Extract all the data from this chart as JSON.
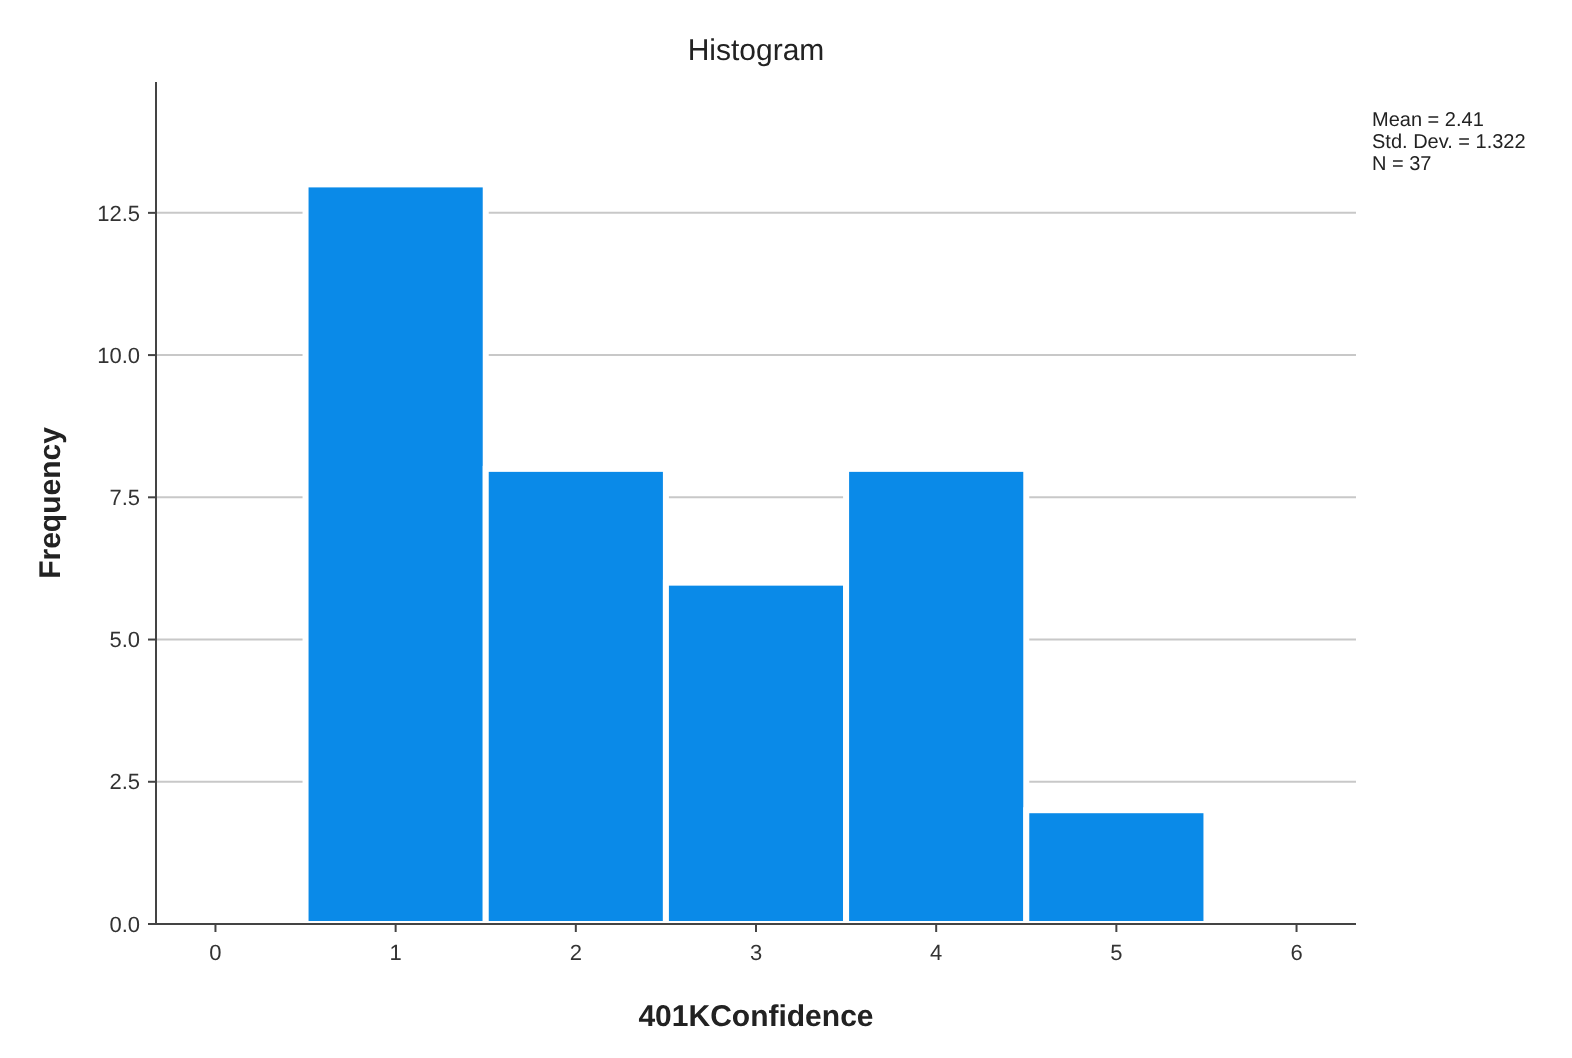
{
  "chart_data": {
    "type": "histogram",
    "title": "Histogram",
    "xlabel": "401KConfidence",
    "ylabel": "Frequency",
    "bins": [
      0.5,
      1.5,
      2.5,
      3.5,
      4.5,
      5.5
    ],
    "values": [
      13,
      8,
      6,
      8,
      2
    ],
    "color": "#0a8ae8",
    "xlim": [
      -0.33,
      6.33
    ],
    "xticks": [
      0,
      1,
      2,
      3,
      4,
      5,
      6
    ],
    "ylim": [
      0,
      14.8
    ],
    "yticks": [
      {
        "value": 0,
        "label": "0.0"
      },
      {
        "value": 2.5,
        "label": "2.5"
      },
      {
        "value": 5,
        "label": "5.0"
      },
      {
        "value": 7.5,
        "label": "7.5"
      },
      {
        "value": 10,
        "label": "10.0"
      },
      {
        "value": 12.5,
        "label": "12.5"
      }
    ],
    "grid": "y",
    "annotations": [
      "Mean = 2.41",
      "Std. Dev. = 1.322",
      "N = 37"
    ]
  }
}
